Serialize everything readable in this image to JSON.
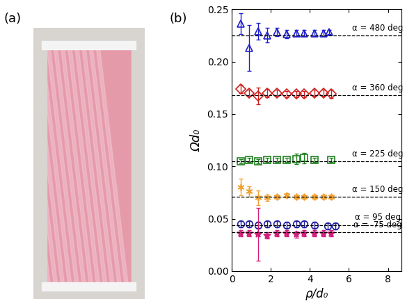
{
  "photo": {
    "label": "(a)"
  },
  "chart_data": {
    "type": "scatter",
    "annotations": [
      "(b)"
    ],
    "x_label": "ρ/d₀",
    "y_label": "Ωd₀",
    "xlim": [
      0,
      8.7
    ],
    "xticks": [
      0,
      2,
      4,
      6,
      8
    ],
    "ylim": [
      0,
      0.25
    ],
    "yticks": [
      {
        "value": 0.0,
        "label": "0.00"
      },
      {
        "value": 0.05,
        "label": "0.05"
      },
      {
        "value": 0.1,
        "label": "0.10"
      },
      {
        "value": 0.15,
        "label": "0.15"
      },
      {
        "value": 0.2,
        "label": "0.20"
      },
      {
        "value": 0.25,
        "label": "0.25"
      }
    ],
    "grid": false,
    "series": [
      {
        "name": "α = 480 deg",
        "color": "#2020d0",
        "marker": "triangle",
        "reference": 0.225,
        "x": [
          0.45,
          0.9,
          1.35,
          1.8,
          2.3,
          2.8,
          3.3,
          3.7,
          4.25,
          4.7,
          5.0
        ],
        "values": [
          0.236,
          0.213,
          0.229,
          0.225,
          0.228,
          0.226,
          0.227,
          0.227,
          0.227,
          0.227,
          0.228
        ],
        "errors": [
          0.01,
          0.022,
          0.008,
          0.007,
          0.004,
          0.004,
          0.003,
          0.003,
          0.003,
          0.003,
          0.002
        ]
      },
      {
        "name": "α = 360 deg",
        "color": "#d02020",
        "marker": "diamond",
        "reference": 0.168,
        "x": [
          0.45,
          0.9,
          1.35,
          1.8,
          2.3,
          2.8,
          3.3,
          3.7,
          4.25,
          4.7,
          5.1
        ],
        "values": [
          0.174,
          0.17,
          0.167,
          0.17,
          0.17,
          0.169,
          0.169,
          0.169,
          0.17,
          0.17,
          0.169
        ],
        "errors": [
          0.004,
          0.003,
          0.008,
          0.004,
          0.003,
          0.003,
          0.003,
          0.003,
          0.003,
          0.003,
          0.004
        ]
      },
      {
        "name": "α = 225 deg",
        "color": "#208020",
        "marker": "square",
        "reference": 0.105,
        "x": [
          0.45,
          0.9,
          1.35,
          1.8,
          2.3,
          2.8,
          3.3,
          3.7,
          4.25,
          5.1
        ],
        "values": [
          0.105,
          0.106,
          0.105,
          0.106,
          0.106,
          0.106,
          0.107,
          0.108,
          0.106,
          0.106
        ],
        "errors": [
          0.002,
          0.002,
          0.002,
          0.002,
          0.002,
          0.002,
          0.005,
          0.005,
          0.002,
          0.002
        ]
      },
      {
        "name": "α = 150 deg",
        "color": "#f0a030",
        "marker": "asterisk",
        "reference": 0.071,
        "x": [
          0.45,
          0.9,
          1.35,
          1.8,
          2.3,
          2.8,
          3.3,
          3.7,
          4.25,
          4.7,
          5.1
        ],
        "values": [
          0.08,
          0.076,
          0.07,
          0.07,
          0.071,
          0.072,
          0.071,
          0.071,
          0.071,
          0.071,
          0.071
        ],
        "errors": [
          0.008,
          0.005,
          0.007,
          0.003,
          0.002,
          0.002,
          0.002,
          0.002,
          0.002,
          0.002,
          0.002
        ]
      },
      {
        "name": "α = 95 deg",
        "color": "#2020a0",
        "marker": "circle",
        "reference": 0.044,
        "x": [
          0.45,
          0.9,
          1.35,
          1.8,
          2.3,
          2.8,
          3.3,
          3.7,
          4.25,
          4.9,
          5.3
        ],
        "values": [
          0.045,
          0.045,
          0.044,
          0.045,
          0.045,
          0.044,
          0.045,
          0.045,
          0.044,
          0.043,
          0.043
        ],
        "errors": [
          0.003,
          0.003,
          0.003,
          0.003,
          0.003,
          0.003,
          0.003,
          0.003,
          0.003,
          0.003,
          0.003
        ]
      },
      {
        "name": "α =  75 deg",
        "color": "#d0207a",
        "marker": "star",
        "reference": 0.037,
        "x": [
          0.45,
          0.9,
          1.35,
          1.8,
          2.3,
          2.8,
          3.3,
          3.7,
          4.25,
          4.7,
          5.1
        ],
        "values": [
          0.036,
          0.036,
          0.035,
          0.034,
          0.036,
          0.036,
          0.035,
          0.036,
          0.036,
          0.036,
          0.036
        ],
        "errors": [
          0.003,
          0.003,
          0.025,
          0.003,
          0.003,
          0.003,
          0.003,
          0.003,
          0.003,
          0.003,
          0.003
        ]
      }
    ]
  }
}
